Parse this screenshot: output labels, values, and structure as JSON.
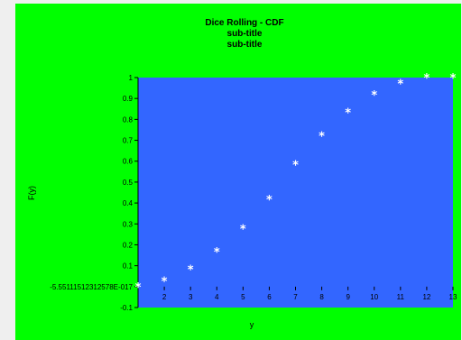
{
  "chart_data": {
    "type": "scatter",
    "title": "Dice Rolling - CDF",
    "subtitles": [
      "sub-title",
      "sub-title"
    ],
    "xlabel": "y",
    "ylabel": "F(y)",
    "xlim": [
      1,
      13
    ],
    "ylim": [
      -0.1,
      1.0
    ],
    "x_ticks": [
      "2",
      "3",
      "4",
      "5",
      "6",
      "7",
      "8",
      "9",
      "10",
      "11",
      "12",
      "13"
    ],
    "y_ticks": [
      "-0.1",
      "-5.55111512312578E-017",
      "0.1",
      "0.2",
      "0.3",
      "0.4",
      "0.5",
      "0.6",
      "0.7",
      "0.8",
      "0.9",
      "1"
    ],
    "grid": false,
    "marker": "*",
    "colors": {
      "panel_background": "#00ff00",
      "plot_background": "#3366ff",
      "marker": "#ffffff"
    },
    "points": [
      {
        "x": 1,
        "y": 0.0
      },
      {
        "x": 2,
        "y": 0.028
      },
      {
        "x": 3,
        "y": 0.083
      },
      {
        "x": 4,
        "y": 0.167
      },
      {
        "x": 5,
        "y": 0.278
      },
      {
        "x": 6,
        "y": 0.417
      },
      {
        "x": 7,
        "y": 0.583
      },
      {
        "x": 8,
        "y": 0.722
      },
      {
        "x": 9,
        "y": 0.833
      },
      {
        "x": 10,
        "y": 0.917
      },
      {
        "x": 11,
        "y": 0.972
      },
      {
        "x": 12,
        "y": 1.0
      },
      {
        "x": 13,
        "y": 1.0
      }
    ]
  }
}
